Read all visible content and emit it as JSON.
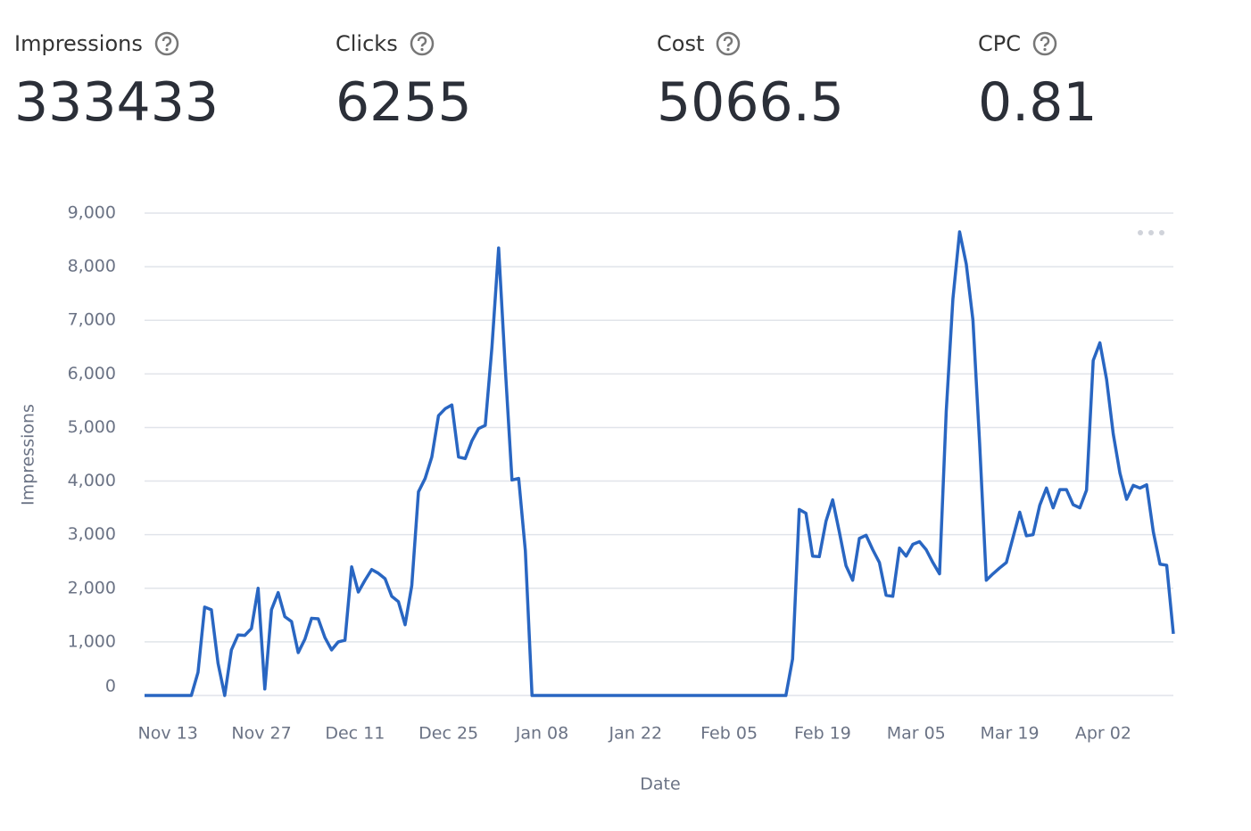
{
  "kpis": [
    {
      "label": "Impressions",
      "value": 333433
    },
    {
      "label": "Clicks",
      "value": 6255
    },
    {
      "label": "Cost",
      "value": 5066.5
    },
    {
      "label": "CPC",
      "value": 0.81
    }
  ],
  "chart_data": {
    "type": "line",
    "x_label": "Date",
    "y_label": "Impressions",
    "x": [
      0,
      1,
      2,
      3,
      4,
      5,
      6,
      7,
      8,
      9,
      10,
      11,
      12,
      13,
      14,
      15,
      16,
      17,
      18,
      19,
      20,
      21,
      22,
      23,
      24,
      25,
      26,
      27,
      28,
      29,
      30,
      31,
      32,
      33,
      34,
      35,
      36,
      37,
      38,
      39,
      40,
      41,
      42,
      43,
      44,
      45,
      46,
      47,
      48,
      49,
      50,
      51,
      52,
      53,
      54,
      55,
      56,
      57,
      58,
      59,
      60,
      61,
      62,
      63,
      64,
      65,
      66,
      67,
      68,
      69,
      70,
      71,
      72,
      73,
      74,
      75,
      76,
      77,
      78,
      79,
      80,
      81,
      82,
      83,
      84,
      85,
      86,
      87,
      88,
      89,
      90,
      91,
      92,
      93,
      94,
      95,
      96,
      97,
      98,
      99,
      100,
      101,
      102,
      103,
      104,
      105,
      106,
      107,
      108,
      109,
      110,
      111,
      112,
      113,
      114,
      115,
      116,
      117,
      118,
      119,
      120,
      121,
      122,
      123,
      124,
      125,
      126,
      127,
      128,
      129,
      130,
      131,
      132,
      133,
      134,
      135,
      136,
      137,
      138,
      139,
      140,
      141,
      142,
      143,
      144,
      145,
      146,
      147,
      148,
      149,
      150,
      151,
      152,
      153,
      154
    ],
    "series": [
      {
        "name": "Impressions",
        "color": "#2966c2",
        "values": [
          0,
          0,
          0,
          0,
          0,
          0,
          0,
          0,
          430,
          1650,
          1600,
          600,
          0,
          850,
          1130,
          1120,
          1250,
          2000,
          120,
          1600,
          1920,
          1470,
          1380,
          800,
          1050,
          1440,
          1430,
          1080,
          850,
          1000,
          1030,
          2400,
          1930,
          2150,
          2350,
          2280,
          2180,
          1850,
          1750,
          1320,
          2050,
          3800,
          4050,
          4450,
          5220,
          5350,
          5420,
          4450,
          4420,
          4750,
          4980,
          5040,
          6500,
          8350,
          6100,
          4020,
          4050,
          2700,
          0,
          0,
          0,
          0,
          0,
          0,
          0,
          0,
          0,
          0,
          0,
          0,
          0,
          0,
          0,
          0,
          0,
          0,
          0,
          0,
          0,
          0,
          0,
          0,
          0,
          0,
          0,
          0,
          0,
          0,
          0,
          0,
          0,
          0,
          0,
          0,
          0,
          0,
          0,
          680,
          3470,
          3400,
          2600,
          2590,
          3250,
          3650,
          3050,
          2420,
          2150,
          2930,
          2990,
          2720,
          2480,
          1870,
          1850,
          2750,
          2600,
          2820,
          2870,
          2720,
          2480,
          2270,
          5300,
          7400,
          8650,
          8050,
          7000,
          4700,
          2150,
          2270,
          2380,
          2480,
          2950,
          3420,
          2980,
          3000,
          3550,
          3870,
          3500,
          3840,
          3840,
          3560,
          3500,
          3830,
          6250,
          6580,
          5900,
          4880,
          4150,
          3660,
          3920,
          3870,
          3930,
          3050,
          2450,
          2430,
          1150
        ]
      }
    ],
    "xlim": [
      0,
      154
    ],
    "xticks": [
      {
        "value": 3.5,
        "label": "Nov 13"
      },
      {
        "value": 17.5,
        "label": "Nov 27"
      },
      {
        "value": 31.5,
        "label": "Dec 11"
      },
      {
        "value": 45.5,
        "label": "Dec 25"
      },
      {
        "value": 59.5,
        "label": "Jan 08"
      },
      {
        "value": 73.5,
        "label": "Jan 22"
      },
      {
        "value": 87.5,
        "label": "Feb 05"
      },
      {
        "value": 101.5,
        "label": "Feb 19"
      },
      {
        "value": 115.5,
        "label": "Mar 05"
      },
      {
        "value": 129.5,
        "label": "Mar 19"
      },
      {
        "value": 143.5,
        "label": "Apr 02"
      }
    ],
    "ylim": [
      0,
      9000
    ],
    "yticks": [
      0,
      {
        "value": 1000,
        "label": "1,000"
      },
      {
        "value": 2000,
        "label": "2,000"
      },
      {
        "value": 3000,
        "label": "3,000"
      },
      {
        "value": 4000,
        "label": "4,000"
      },
      {
        "value": 5000,
        "label": "5,000"
      },
      {
        "value": 6000,
        "label": "6,000"
      },
      {
        "value": 7000,
        "label": "7,000"
      },
      {
        "value": 8000,
        "label": "8,000"
      },
      {
        "value": 9000,
        "label": "9,000"
      }
    ],
    "grid": true
  }
}
